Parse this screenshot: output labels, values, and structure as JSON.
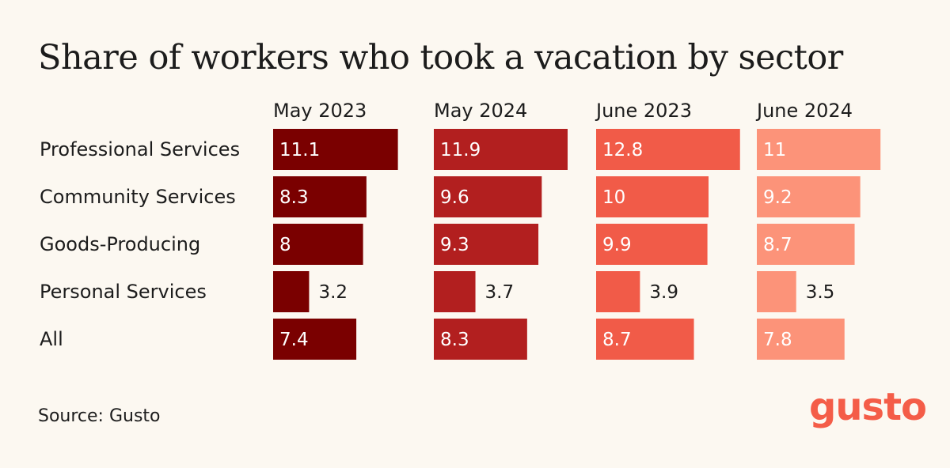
{
  "header": {
    "title": "Share of workers who took a vacation by sector"
  },
  "footer": {
    "source": "Source: Gusto",
    "logo": "gusto"
  },
  "colors": {
    "background": "#fcf8f1",
    "text": "#1c1c1c",
    "series": [
      "#7a0000",
      "#b21f1f",
      "#f15b48",
      "#fc9379"
    ],
    "logo": "#f45d48"
  },
  "chart_data": {
    "type": "bar",
    "title": "Share of workers who took a vacation by sector",
    "categories": [
      "Professional Services",
      "Community Services",
      "Goods-Producing",
      "Personal Services",
      "All"
    ],
    "series": [
      {
        "name": "May 2023",
        "values": [
          11.1,
          8.3,
          8,
          3.2,
          7.4
        ]
      },
      {
        "name": "May 2024",
        "values": [
          11.9,
          9.6,
          9.3,
          3.7,
          8.3
        ]
      },
      {
        "name": "June 2023",
        "values": [
          12.8,
          10,
          9.9,
          3.9,
          8.7
        ]
      },
      {
        "name": "June 2024",
        "values": [
          11,
          9.2,
          8.7,
          3.5,
          7.8
        ]
      }
    ],
    "value_labels": [
      [
        "11.1",
        "8.3",
        "8",
        "3.2",
        "7.4"
      ],
      [
        "11.9",
        "9.6",
        "9.3",
        "3.7",
        "8.3"
      ],
      [
        "12.8",
        "10",
        "9.9",
        "3.9",
        "8.7"
      ],
      [
        "11",
        "9.2",
        "8.7",
        "3.5",
        "7.8"
      ]
    ],
    "orientation": "horizontal",
    "layout": "small-multiples",
    "xlabel": "",
    "ylabel": ""
  }
}
